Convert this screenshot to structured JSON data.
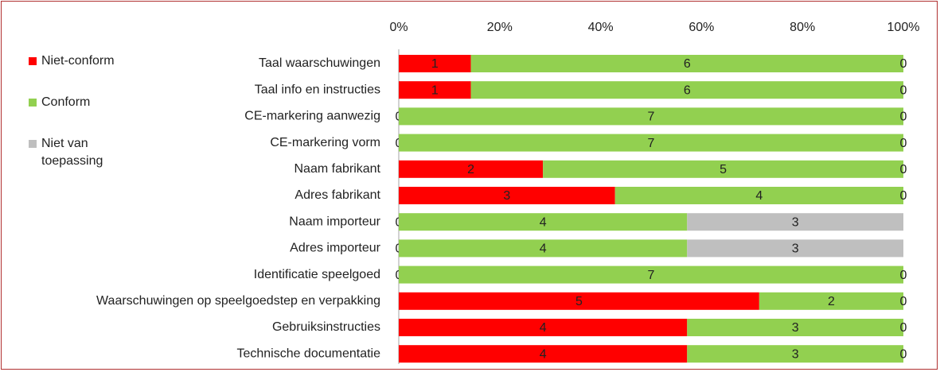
{
  "chart_data": {
    "type": "bar",
    "orientation": "horizontal",
    "stack": "percent",
    "categories": [
      "Taal waarschuwingen",
      "Taal info en instructies",
      "CE-markering aanwezig",
      "CE-markering vorm",
      "Naam fabrikant",
      "Adres fabrikant",
      "Naam importeur",
      "Adres importeur",
      "Identificatie speelgoed",
      "Waarschuwingen op speelgoedstep en verpakking",
      "Gebruiksinstructies",
      "Technische documentatie"
    ],
    "series": [
      {
        "name": "Niet-conform",
        "color": "#ff0000",
        "values": [
          1,
          1,
          0,
          0,
          2,
          3,
          0,
          0,
          0,
          5,
          4,
          4
        ]
      },
      {
        "name": "Conform",
        "color": "#92d050",
        "values": [
          6,
          6,
          7,
          7,
          5,
          4,
          4,
          4,
          7,
          2,
          3,
          3
        ]
      },
      {
        "name": "Niet van toepassing",
        "color": "#bfbfbf",
        "values": [
          0,
          0,
          0,
          0,
          0,
          0,
          3,
          3,
          0,
          0,
          0,
          0
        ]
      }
    ],
    "xlim": [
      0,
      100
    ],
    "xticks": [
      {
        "value": 0,
        "label": "0%"
      },
      {
        "value": 20,
        "label": "20%"
      },
      {
        "value": 40,
        "label": "40%"
      },
      {
        "value": 60,
        "label": "60%"
      },
      {
        "value": 80,
        "label": "80%"
      },
      {
        "value": 100,
        "label": "100%"
      }
    ],
    "legend": "left",
    "grid": false
  }
}
